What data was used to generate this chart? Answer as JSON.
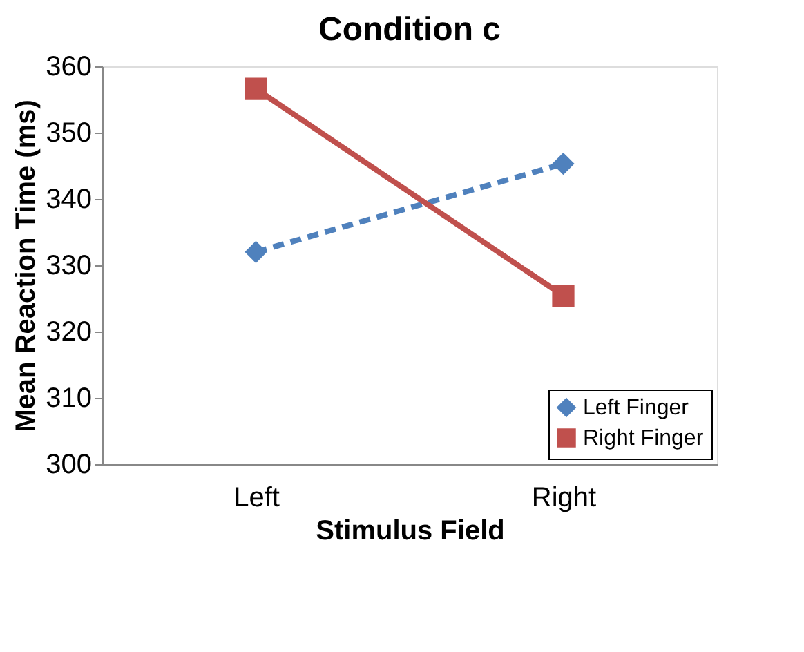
{
  "chart_data": {
    "type": "line",
    "title": "Condition c",
    "xlabel": "Stimulus Field",
    "ylabel": "Mean Reaction Time (ms)",
    "categories": [
      "Left",
      "Right"
    ],
    "series": [
      {
        "name": "Left Finger",
        "color": "#4f81bd",
        "values": [
          332,
          345.3
        ],
        "marker": "diamond",
        "line_style": "dashed"
      },
      {
        "name": "Right Finger",
        "color": "#c0504d",
        "values": [
          356.6,
          325.4
        ],
        "marker": "square",
        "line_style": "solid"
      }
    ],
    "ylim": [
      300,
      360
    ],
    "yticks": [
      300,
      310,
      320,
      330,
      340,
      350,
      360
    ],
    "grid": false,
    "legend": "bottom right"
  }
}
